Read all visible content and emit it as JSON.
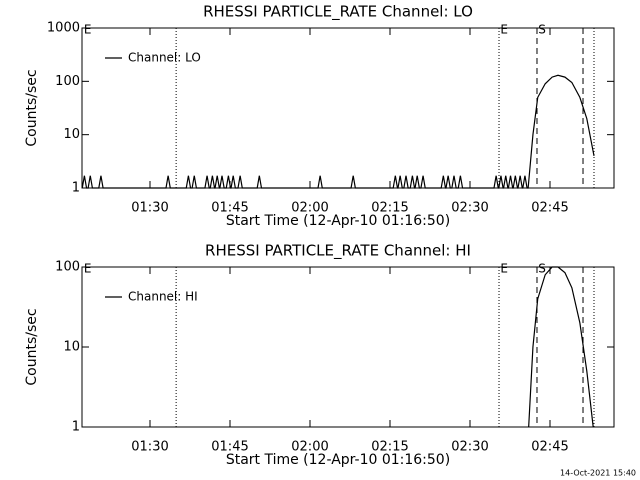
{
  "chart_data": [
    {
      "type": "line",
      "title": "RHESSI PARTICLE_RATE Channel: LO",
      "xlabel": "Start Time (12-Apr-10 01:16:50)",
      "ylabel": "Counts/sec",
      "xlim": [
        77.25,
        177
      ],
      "xticks": [
        {
          "value": 90,
          "label": "01:30"
        },
        {
          "value": 105,
          "label": "01:45"
        },
        {
          "value": 120,
          "label": "02:00"
        },
        {
          "value": 135,
          "label": "02:15"
        },
        {
          "value": 150,
          "label": "02:30"
        },
        {
          "value": 165,
          "label": "02:45"
        }
      ],
      "ylim": [
        1,
        1000
      ],
      "yticks": [
        1,
        10,
        100,
        1000
      ],
      "log_y": true,
      "legend": "upper left",
      "x": [
        77.3,
        77.7,
        78.1,
        78.4,
        78.8,
        79.2,
        80.4,
        80.8,
        81.2,
        93.0,
        93.4,
        93.8,
        96.8,
        97.2,
        97.6,
        97.9,
        98.3,
        98.7,
        100.3,
        100.7,
        101.1,
        101.3,
        101.7,
        102.1,
        102.2,
        102.6,
        103.0,
        103.1,
        103.5,
        103.9,
        104.3,
        104.7,
        105.1,
        105.2,
        105.6,
        106.0,
        106.5,
        106.9,
        107.3,
        110.1,
        110.5,
        110.9,
        121.5,
        121.9,
        122.3,
        127.7,
        128.1,
        128.5,
        135.6,
        136.0,
        136.4,
        136.5,
        136.9,
        137.3,
        137.6,
        138.0,
        138.4,
        138.8,
        139.2,
        139.6,
        139.7,
        140.1,
        140.5,
        140.8,
        141.2,
        141.6,
        144.6,
        145.0,
        145.4,
        145.5,
        145.9,
        146.3,
        146.6,
        147.0,
        147.4,
        147.8,
        148.2,
        148.6,
        154.5,
        154.9,
        155.3,
        155.4,
        155.8,
        156.2,
        156.3,
        156.7,
        157.1,
        157.2,
        157.6,
        158.0,
        158.1,
        158.5,
        158.9,
        159.0,
        159.4,
        159.8,
        159.9,
        160.3,
        160.7,
        160.9,
        161.8,
        162.7,
        164.1,
        165.4,
        166.5,
        167.8,
        169.1,
        170.6,
        171.9,
        173.25
      ],
      "series": [
        {
          "name": "Channel: LO",
          "color": "#000000",
          "values": [
            1,
            1.7,
            1,
            1,
            1.7,
            1,
            1,
            1.7,
            1,
            1,
            1.7,
            1,
            1,
            1.7,
            1,
            1,
            1.7,
            1,
            1,
            1.7,
            1,
            1,
            1.7,
            1,
            1,
            1.7,
            1,
            1,
            1.7,
            1,
            1,
            1.7,
            1,
            1,
            1.7,
            1,
            1,
            1.7,
            1,
            1,
            1.7,
            1,
            1,
            1.7,
            1,
            1,
            1.7,
            1,
            1,
            1.7,
            1,
            1,
            1.7,
            1,
            1,
            1.7,
            1,
            1,
            1.7,
            1,
            1,
            1.7,
            1,
            1,
            1.7,
            1,
            1,
            1.7,
            1,
            1,
            1.7,
            1,
            1,
            1.7,
            1,
            1,
            1.7,
            1,
            1,
            1.7,
            1,
            1,
            1.7,
            1,
            1,
            1.7,
            1,
            1,
            1.7,
            1,
            1,
            1.7,
            1,
            1,
            1.7,
            1,
            1,
            1.7,
            1,
            1,
            10,
            50,
            90,
            120,
            130,
            120,
            95,
            50,
            20,
            4
          ]
        }
      ],
      "vlines": [
        {
          "x": 94.9,
          "style": "dotted"
        },
        {
          "x": 155.44,
          "style": "dotted"
        },
        {
          "x": 162.56,
          "style": "dashed"
        },
        {
          "x": 171.19,
          "style": "dashed"
        },
        {
          "x": 173.25,
          "style": "dotted"
        }
      ],
      "annotations": [
        {
          "text": "E",
          "x": 77.6
        },
        {
          "text": "E",
          "x": 155.7
        },
        {
          "text": "S",
          "x": 162.8
        }
      ]
    },
    {
      "type": "line",
      "title": "RHESSI PARTICLE_RATE Channel: HI",
      "xlabel": "Start Time (12-Apr-10 01:16:50)",
      "ylabel": "Counts/sec",
      "xlim": [
        77.25,
        177
      ],
      "xticks": [
        {
          "value": 90,
          "label": "01:30"
        },
        {
          "value": 105,
          "label": "01:45"
        },
        {
          "value": 120,
          "label": "02:00"
        },
        {
          "value": 135,
          "label": "02:15"
        },
        {
          "value": 150,
          "label": "02:30"
        },
        {
          "value": 165,
          "label": "02:45"
        }
      ],
      "ylim": [
        1,
        100
      ],
      "yticks": [
        1,
        10,
        100
      ],
      "log_y": true,
      "legend": "upper left",
      "x": [
        161.0,
        161.8,
        162.7,
        164.1,
        165.4,
        166.5,
        167.8,
        169.1,
        170.6,
        171.9,
        173.1
      ],
      "series": [
        {
          "name": "Channel: HI",
          "color": "#000000",
          "values": [
            1,
            10,
            40,
            80,
            100,
            100,
            85,
            55,
            20,
            5,
            1
          ]
        }
      ],
      "vlines": [
        {
          "x": 94.9,
          "style": "dotted"
        },
        {
          "x": 155.44,
          "style": "dotted"
        },
        {
          "x": 162.56,
          "style": "dashed"
        },
        {
          "x": 171.19,
          "style": "dashed"
        },
        {
          "x": 173.25,
          "style": "dotted"
        }
      ],
      "annotations": [
        {
          "text": "E",
          "x": 77.6
        },
        {
          "text": "E",
          "x": 155.7
        },
        {
          "text": "S",
          "x": 162.8
        }
      ]
    }
  ],
  "timestamp": "14-Oct-2021 15:40"
}
